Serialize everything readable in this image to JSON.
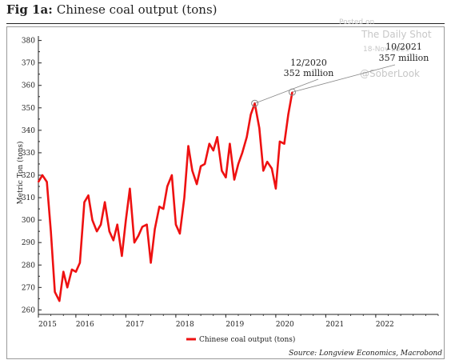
{
  "header": {
    "fig_label": "Fig 1a:",
    "title": "Chinese coal output (tons)"
  },
  "watermark": {
    "line1": "Posted on",
    "line2": "The Daily Shot",
    "line3": "18-Nov-2021",
    "line4": "@SoberLook"
  },
  "source": "Source: Longview Economics, Macrobond",
  "colors": {
    "series": "#ee1111",
    "axis": "#222222",
    "marker": "#888888"
  },
  "chart_data": {
    "type": "line",
    "ylabel": "Metric Ton (tons)",
    "ylim": [
      258,
      382
    ],
    "yticks": [
      260,
      270,
      280,
      290,
      300,
      310,
      320,
      330,
      340,
      350,
      360,
      370,
      380
    ],
    "xlim": [
      2015.0,
      2023.0
    ],
    "xticks": [
      {
        "label": "2015",
        "value": 2015.0
      },
      {
        "label": "2016",
        "value": 2015.75
      },
      {
        "label": "2017",
        "value": 2016.75
      },
      {
        "label": "2018",
        "value": 2017.75
      },
      {
        "label": "2019",
        "value": 2018.75
      },
      {
        "label": "2020",
        "value": 2019.75
      },
      {
        "label": "2021",
        "value": 2020.75
      },
      {
        "label": "2022",
        "value": 2021.75
      }
    ],
    "series": [
      {
        "name": "Chinese coal output (tons)",
        "points": [
          [
            2015.0,
            317
          ],
          [
            2015.08,
            320
          ],
          [
            2015.17,
            317
          ],
          [
            2015.25,
            295
          ],
          [
            2015.33,
            268
          ],
          [
            2015.42,
            264
          ],
          [
            2015.5,
            277
          ],
          [
            2015.58,
            270
          ],
          [
            2015.67,
            278
          ],
          [
            2015.75,
            277
          ],
          [
            2015.83,
            281
          ],
          [
            2015.92,
            308
          ],
          [
            2016.0,
            311
          ],
          [
            2016.08,
            300
          ],
          [
            2016.17,
            295
          ],
          [
            2016.25,
            298
          ],
          [
            2016.33,
            308
          ],
          [
            2016.42,
            295
          ],
          [
            2016.5,
            291
          ],
          [
            2016.58,
            298
          ],
          [
            2016.67,
            284
          ],
          [
            2016.75,
            300
          ],
          [
            2016.83,
            314
          ],
          [
            2016.92,
            290
          ],
          [
            2017.0,
            293
          ],
          [
            2017.08,
            297
          ],
          [
            2017.17,
            298
          ],
          [
            2017.25,
            281
          ],
          [
            2017.33,
            296
          ],
          [
            2017.42,
            306
          ],
          [
            2017.5,
            305
          ],
          [
            2017.58,
            315
          ],
          [
            2017.67,
            320
          ],
          [
            2017.75,
            298
          ],
          [
            2017.83,
            294
          ],
          [
            2017.92,
            310
          ],
          [
            2018.0,
            333
          ],
          [
            2018.08,
            322
          ],
          [
            2018.17,
            316
          ],
          [
            2018.25,
            324
          ],
          [
            2018.33,
            325
          ],
          [
            2018.42,
            334
          ],
          [
            2018.5,
            331
          ],
          [
            2018.58,
            337
          ],
          [
            2018.67,
            322
          ],
          [
            2018.75,
            319
          ],
          [
            2018.83,
            334
          ],
          [
            2018.92,
            318
          ],
          [
            2019.0,
            325
          ],
          [
            2019.08,
            330
          ],
          [
            2019.17,
            337
          ],
          [
            2019.25,
            347
          ],
          [
            2019.33,
            352
          ],
          [
            2019.42,
            341
          ],
          [
            2019.5,
            322
          ],
          [
            2019.58,
            326
          ],
          [
            2019.67,
            323
          ],
          [
            2019.75,
            314
          ],
          [
            2019.83,
            335
          ],
          [
            2019.92,
            334
          ],
          [
            2020.0,
            347
          ],
          [
            2020.08,
            357
          ]
        ]
      }
    ],
    "annotations": [
      {
        "date": "12/2020",
        "value": "352 million",
        "x": 2019.33,
        "y": 352
      },
      {
        "date": "10/2021",
        "value": "357 million",
        "x": 2020.08,
        "y": 357
      }
    ],
    "legend": "bottom-center",
    "grid": false
  }
}
